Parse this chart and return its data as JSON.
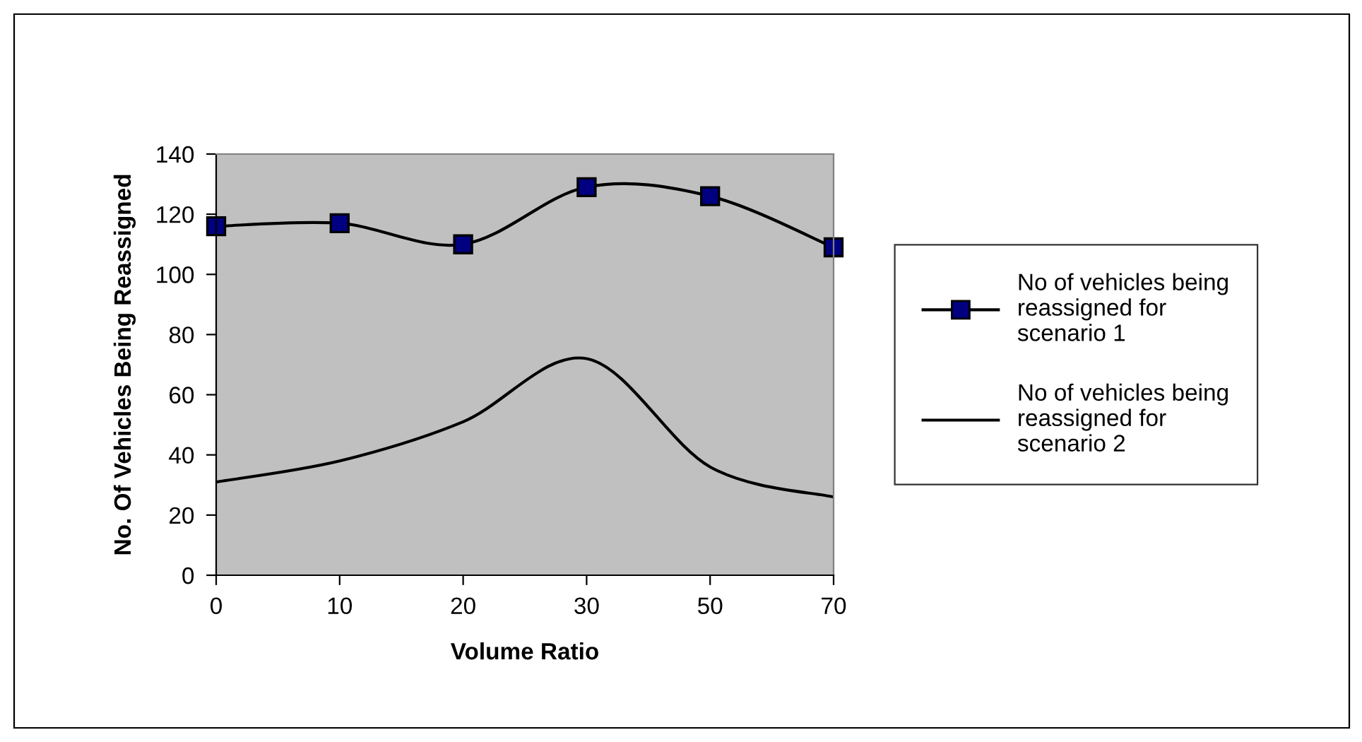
{
  "chart_data": {
    "type": "line",
    "xlabel": "Volume Ratio",
    "ylabel": "No. Of Vehicles Being Reassigned",
    "categories": [
      "0",
      "10",
      "20",
      "30",
      "50",
      "70"
    ],
    "series": [
      {
        "name": "No of vehicles being reassigned for scenario 1",
        "color": "#000000",
        "marker": "square",
        "values": [
          116,
          117,
          110,
          129,
          126,
          109
        ]
      },
      {
        "name": "No of vehicles being reassigned for scenario 2",
        "color": "#000000",
        "marker": "none",
        "values": [
          31,
          38,
          51,
          72,
          36,
          26
        ]
      }
    ],
    "ylim": [
      0,
      140
    ],
    "yticks": [
      0,
      20,
      40,
      60,
      80,
      100,
      120,
      140
    ],
    "grid": false,
    "legend": "right",
    "line_style": "solid"
  }
}
